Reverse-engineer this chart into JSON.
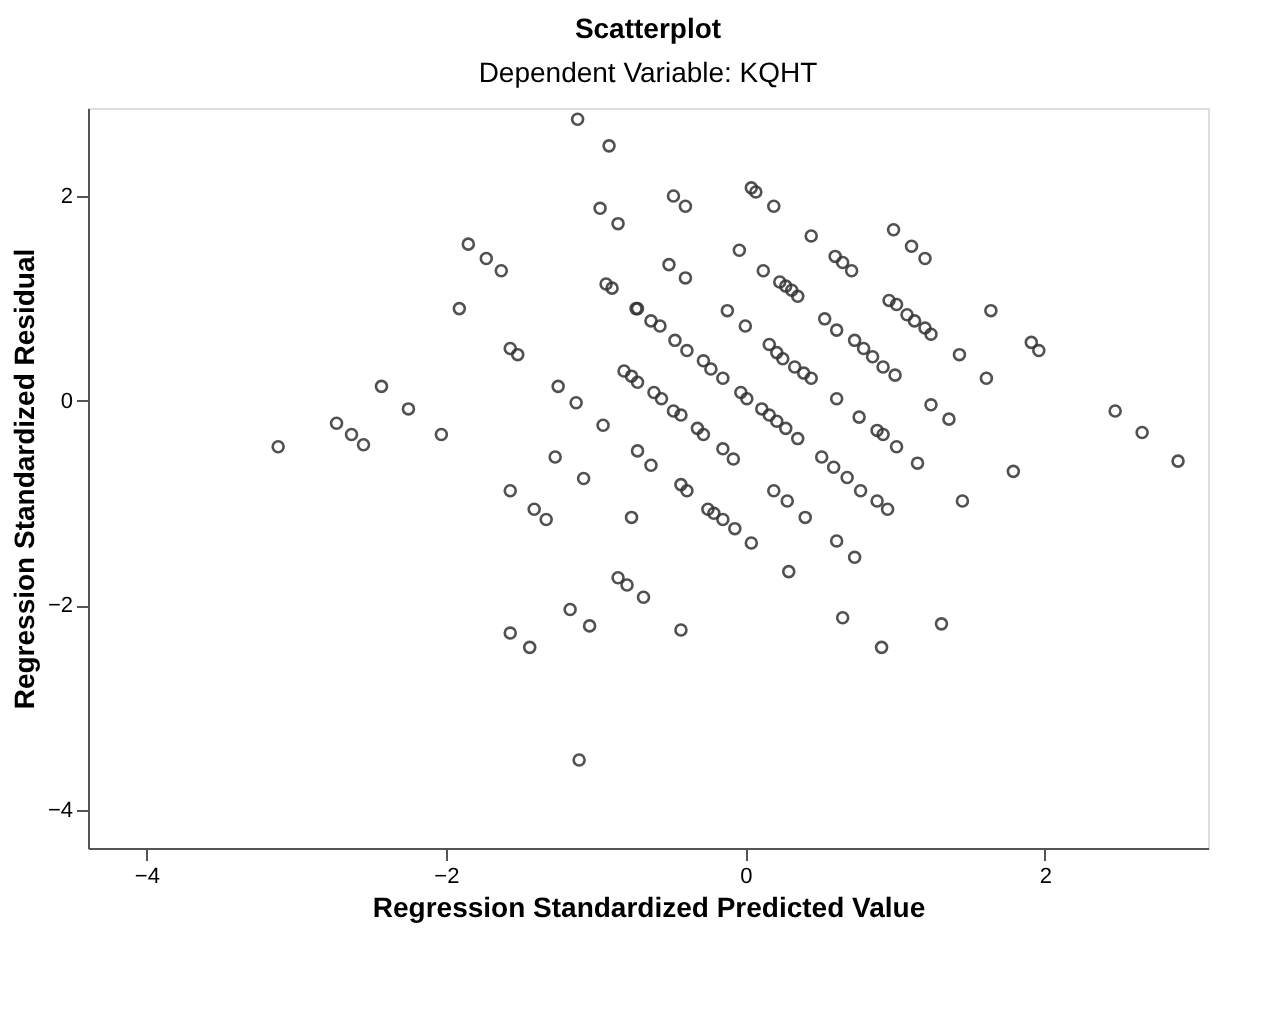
{
  "chart_data": {
    "type": "scatter",
    "title": "Scatterplot",
    "subtitle": "Dependent Variable: KQHT",
    "xlabel": "Regression Standardized Predicted Value",
    "ylabel": "Regression Standardized Residual",
    "xlim": [
      -4.39,
      3.09
    ],
    "ylim": [
      -4.37,
      2.86
    ],
    "xticks": [
      -4,
      -2,
      0,
      2
    ],
    "yticks": [
      -4,
      -2,
      0,
      2
    ],
    "grid": false,
    "marker": "circle",
    "x": [
      -1.12,
      -0.91,
      -0.97,
      -0.85,
      -1.85,
      -1.73,
      -1.63,
      -0.93,
      -0.89,
      -0.73,
      -1.91,
      -1.57,
      -1.52,
      -0.81,
      -0.76,
      -0.72,
      -2.43,
      -1.25,
      -1.13,
      -2.25,
      -0.95,
      -2.73,
      -2.63,
      -2.55,
      -2.03,
      -3.12,
      -0.72,
      -1.27,
      -1.08,
      -0.48,
      -0.4,
      0.04,
      0.07,
      0.19,
      0.44,
      -0.04,
      0.6,
      0.65,
      0.71,
      0.99,
      1.11,
      1.2,
      -0.51,
      -0.4,
      0.12,
      0.23,
      0.27,
      0.31,
      0.35,
      1.64,
      0.96,
      1.01,
      1.08,
      1.13,
      1.2,
      1.24,
      1.91,
      1.96,
      1.43,
      1.61,
      -0.72,
      -0.63,
      -0.57,
      -0.12,
      0.0,
      0.53,
      0.61,
      0.73,
      0.79,
      0.85,
      0.92,
      1.0,
      -0.47,
      -0.39,
      -0.28,
      -0.23,
      -0.15,
      0.16,
      0.21,
      0.25,
      0.33,
      0.39,
      0.44,
      -0.61,
      -0.56,
      -0.48,
      -0.43,
      -0.32,
      -0.28,
      -0.15,
      -0.08,
      -0.03,
      0.01,
      0.11,
      0.16,
      0.21,
      0.27,
      0.35,
      0.61,
      0.76,
      0.88,
      0.92,
      1.01,
      1.24,
      1.36,
      1.15,
      1.79,
      2.47,
      2.65,
      2.89,
      -0.63,
      0.51,
      0.59,
      0.68,
      -0.43,
      -0.39,
      -0.25,
      -0.21,
      -0.15,
      -0.07,
      0.04,
      0.19,
      0.28,
      0.4,
      0.61,
      0.73,
      0.29,
      0.77,
      0.88,
      0.95,
      1.45,
      -0.68,
      -0.43,
      0.65,
      0.91,
      1.31,
      -1.57,
      -1.41,
      -1.33,
      -0.76,
      -0.85,
      -0.79,
      -1.17,
      -1.04,
      -1.57,
      -1.44,
      -1.11
    ],
    "series": [
      {
        "color": "#333333",
        "values": [
          2.75,
          2.49,
          1.88,
          1.73,
          1.53,
          1.39,
          1.27,
          1.14,
          1.1,
          0.9,
          0.9,
          0.51,
          0.45,
          0.29,
          0.24,
          0.18,
          0.14,
          0.14,
          -0.02,
          -0.08,
          -0.24,
          -0.22,
          -0.33,
          -0.43,
          -0.33,
          -0.45,
          -0.49,
          -0.55,
          -0.76,
          2.0,
          1.9,
          2.08,
          2.04,
          1.9,
          1.61,
          1.47,
          1.41,
          1.35,
          1.27,
          1.67,
          1.51,
          1.39,
          1.33,
          1.2,
          1.27,
          1.16,
          1.12,
          1.08,
          1.02,
          0.88,
          0.98,
          0.94,
          0.84,
          0.78,
          0.71,
          0.65,
          0.57,
          0.49,
          0.45,
          0.22,
          0.9,
          0.78,
          0.73,
          0.88,
          0.73,
          0.8,
          0.69,
          0.59,
          0.51,
          0.43,
          0.33,
          0.25,
          0.59,
          0.49,
          0.39,
          0.31,
          0.22,
          0.55,
          0.47,
          0.41,
          0.33,
          0.27,
          0.22,
          0.08,
          0.02,
          -0.1,
          -0.14,
          -0.27,
          -0.33,
          -0.47,
          -0.57,
          0.08,
          0.02,
          -0.08,
          -0.14,
          -0.2,
          -0.27,
          -0.37,
          0.02,
          -0.16,
          -0.29,
          -0.33,
          -0.45,
          -0.04,
          -0.18,
          -0.61,
          -0.69,
          -0.1,
          -0.31,
          -0.59,
          -0.63,
          -0.55,
          -0.65,
          -0.75,
          -0.82,
          -0.88,
          -1.06,
          -1.1,
          -1.16,
          -1.25,
          -1.39,
          -0.88,
          -0.98,
          -1.14,
          -1.37,
          -1.53,
          -1.67,
          -0.88,
          -0.98,
          -1.06,
          -0.98,
          -1.92,
          -2.24,
          -2.12,
          -2.41,
          -2.18,
          -0.88,
          -1.06,
          -1.16,
          -1.14,
          -1.73,
          -1.8,
          -2.04,
          -2.2,
          -2.27,
          -2.41,
          -3.51
        ]
      }
    ]
  }
}
